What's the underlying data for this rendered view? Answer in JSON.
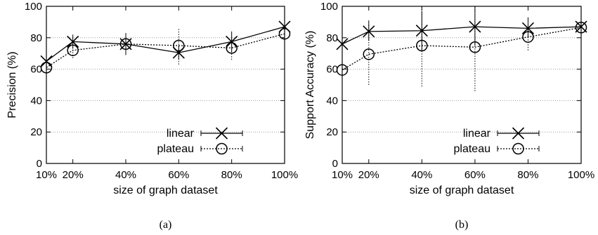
{
  "chart_data": [
    {
      "type": "line",
      "panel_label": "(a)",
      "title": "",
      "xlabel": "size of graph dataset",
      "ylabel": "Precision (%)",
      "categories": [
        "10%",
        "20%",
        "40%",
        "60%",
        "80%",
        "100%"
      ],
      "x": [
        10,
        20,
        40,
        60,
        80,
        100
      ],
      "ylim": [
        0,
        100
      ],
      "yticks": [
        0,
        20,
        40,
        60,
        80,
        100
      ],
      "grid": "horizontal dotted",
      "legend": "bottom-right",
      "series": [
        {
          "name": "linear",
          "marker": "x",
          "line_style": "solid",
          "values": [
            65,
            77.5,
            76,
            70.5,
            77.5,
            87
          ],
          "err_low": [
            58,
            73,
            69,
            66,
            71,
            82
          ],
          "err_high": [
            72,
            82,
            83,
            75,
            84,
            92
          ]
        },
        {
          "name": "plateau",
          "marker": "circle",
          "line_style": "dotted",
          "values": [
            61,
            72,
            76,
            75,
            73.5,
            82.5
          ],
          "err_low": [
            55,
            67,
            71,
            63,
            66,
            77
          ],
          "err_high": [
            67,
            77,
            81,
            86,
            81,
            88
          ]
        }
      ]
    },
    {
      "type": "line",
      "panel_label": "(b)",
      "title": "",
      "xlabel": "size of graph dataset",
      "ylabel": "Support Accuracy (%)",
      "categories": [
        "10%",
        "20%",
        "40%",
        "60%",
        "80%",
        "100%"
      ],
      "x": [
        10,
        20,
        40,
        60,
        80,
        100
      ],
      "ylim": [
        0,
        100
      ],
      "yticks": [
        0,
        20,
        40,
        60,
        80,
        100
      ],
      "grid": "horizontal dotted",
      "legend": "bottom-right",
      "series": [
        {
          "name": "linear",
          "marker": "x",
          "line_style": "solid",
          "values": [
            76,
            84,
            84.5,
            87,
            86,
            87
          ],
          "err_low": [
            70,
            78,
            72,
            75,
            80,
            81
          ],
          "err_high": [
            82,
            91,
            97,
            98,
            93,
            93
          ]
        },
        {
          "name": "plateau",
          "marker": "circle",
          "line_style": "dotted",
          "values": [
            59.5,
            69.5,
            75,
            74,
            80.5,
            86.5
          ],
          "err_low": [
            44,
            50,
            49,
            46,
            72,
            78
          ],
          "err_high": [
            74,
            89,
            100,
            100,
            89,
            95
          ]
        }
      ]
    }
  ]
}
